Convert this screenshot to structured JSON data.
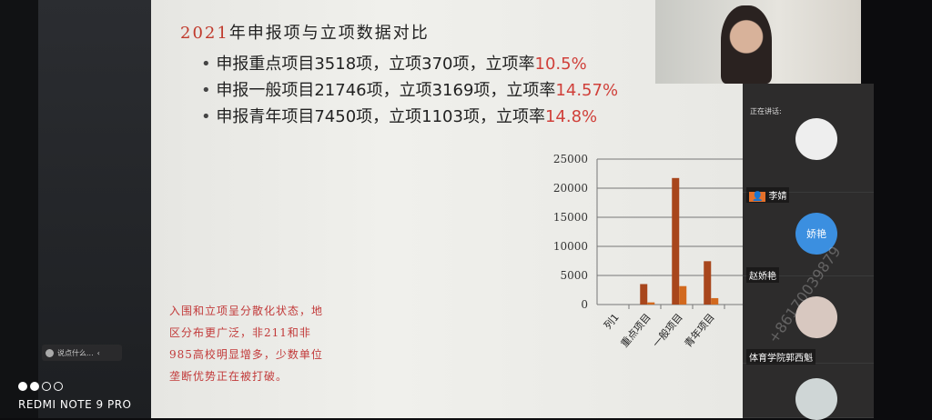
{
  "camera": {
    "brand": "REDMI NOTE 9 PRO"
  },
  "chat": {
    "placeholder": "说点什么...",
    "collapse": "‹"
  },
  "slide": {
    "title_year": "2021",
    "title_rest": "年申报项与立项数据对比",
    "bullets": [
      {
        "text": "申报重点项目3518项，立项370项，立项率",
        "rate": "10.5%"
      },
      {
        "text": "申报一般项目21746项，立项3169项，立项率",
        "rate": "14.57%"
      },
      {
        "text": "申报青年项目7450项，立项1103项，立项率",
        "rate": "14.8%"
      }
    ],
    "note": "入围和立项呈分散化状态，地区分布更广泛，非211和非985高校明显增多，少数单位垄断优势正在被打破。"
  },
  "chart_data": {
    "type": "bar",
    "categories": [
      "列1",
      "重点项目",
      "一般项目",
      "青年项目",
      "",
      ""
    ],
    "series": [
      {
        "name": "重点项目",
        "color": "#a8461c",
        "values": [
          0,
          3518,
          21746,
          7450,
          0,
          0
        ]
      },
      {
        "name": "一般项目",
        "color": "#d2691e",
        "values": [
          0,
          370,
          3169,
          1103,
          0,
          0
        ]
      },
      {
        "name": "青年项目",
        "color": "#c9b3ae",
        "values": [
          0,
          0,
          0,
          0,
          0,
          0
        ]
      }
    ],
    "yticks": [
      "0",
      "5000",
      "10000",
      "15000",
      "20000",
      "25000"
    ],
    "ylim": [
      0,
      25000
    ],
    "grid": true,
    "legend": "right"
  },
  "meeting": {
    "speaking_label": "正在讲话:",
    "participants": [
      {
        "name": "李婧",
        "avatar_text": ""
      },
      {
        "name": "赵娇艳",
        "avatar_text": "娇艳"
      },
      {
        "name": "体育学院郭西魁",
        "avatar_text": ""
      }
    ],
    "accent": "#3b8fe0"
  },
  "watermark": "+86170039879"
}
